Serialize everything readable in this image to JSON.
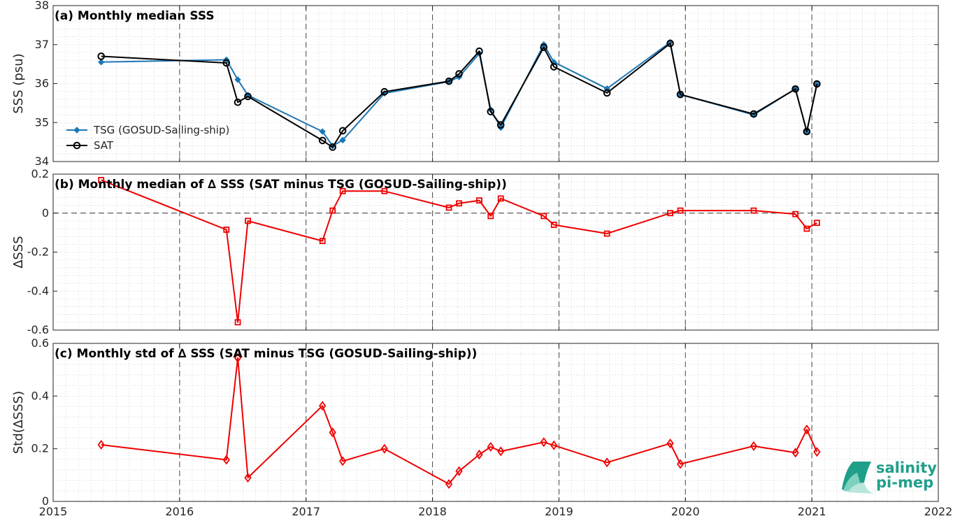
{
  "chart_data": [
    {
      "type": "line",
      "title": "(a) Monthly median SSS",
      "ylabel": "SSS (psu)",
      "ylim": [
        34,
        38
      ],
      "yticks": [
        "34",
        "35",
        "36",
        "37",
        "38"
      ],
      "xlim": [
        2015,
        2022
      ],
      "grid": true,
      "legend_placement": "lower-left",
      "series": [
        {
          "name": "TSG (GOSUD-Sailing-ship)",
          "color": "#1f77b4",
          "marker": "filled-diamond",
          "x": [
            2015.38,
            2016.37,
            2016.46,
            2016.54,
            2017.13,
            2017.21,
            2017.29,
            2017.62,
            2018.13,
            2018.21,
            2018.37,
            2018.46,
            2018.54,
            2018.88,
            2018.96,
            2019.38,
            2019.88,
            2019.96,
            2020.54,
            2020.87,
            2020.96,
            2021.04
          ],
          "values": [
            36.55,
            36.61,
            36.1,
            35.7,
            34.77,
            34.4,
            34.55,
            35.75,
            36.05,
            36.17,
            36.77,
            35.33,
            34.87,
            37.0,
            36.55,
            35.87,
            37.06,
            35.72,
            35.2,
            35.86,
            34.77,
            35.98
          ]
        },
        {
          "name": "SAT",
          "color": "#000000",
          "marker": "open-circle",
          "x": [
            2015.38,
            2016.37,
            2016.46,
            2016.54,
            2017.13,
            2017.21,
            2017.29,
            2017.62,
            2018.13,
            2018.21,
            2018.37,
            2018.46,
            2018.54,
            2018.88,
            2018.96,
            2019.38,
            2019.88,
            2019.96,
            2020.54,
            2020.87,
            2020.96,
            2021.04
          ],
          "values": [
            36.7,
            36.53,
            35.52,
            35.67,
            34.54,
            34.37,
            34.79,
            35.79,
            36.06,
            36.25,
            36.83,
            35.28,
            34.94,
            36.93,
            36.43,
            35.76,
            37.03,
            35.72,
            35.22,
            35.86,
            34.77,
            35.99
          ]
        }
      ]
    },
    {
      "type": "line",
      "title": "(b) Monthly median of ∆ SSS (SAT minus TSG (GOSUD-Sailing-ship))",
      "ylabel": "∆SSS",
      "ylim": [
        -0.6,
        0.2
      ],
      "yticks": [
        "-0.6",
        "-0.4",
        "-0.2",
        "0",
        "0.2"
      ],
      "xlim": [
        2015,
        2022
      ],
      "grid": true,
      "zero_line": true,
      "series": [
        {
          "color": "#ee0000",
          "marker": "open-square",
          "x": [
            2015.38,
            2016.37,
            2016.46,
            2016.54,
            2017.13,
            2017.21,
            2017.29,
            2017.62,
            2018.13,
            2018.21,
            2018.37,
            2018.46,
            2018.54,
            2018.88,
            2018.96,
            2019.38,
            2019.88,
            2019.96,
            2020.54,
            2020.87,
            2020.96,
            2021.04
          ],
          "values": [
            0.17,
            -0.085,
            -0.56,
            -0.04,
            -0.143,
            0.013,
            0.113,
            0.113,
            0.028,
            0.05,
            0.065,
            -0.015,
            0.075,
            -0.015,
            -0.06,
            -0.105,
            0.0,
            0.013,
            0.013,
            -0.005,
            -0.08,
            -0.05
          ]
        }
      ]
    },
    {
      "type": "line",
      "title": "(c) Monthly std of ∆ SSS (SAT minus TSG (GOSUD-Sailing-ship))",
      "ylabel": "Std(∆SSS)",
      "ylim": [
        0,
        0.6
      ],
      "yticks": [
        "0",
        "0.2",
        "0.4",
        "0.6"
      ],
      "xlim": [
        2015,
        2022
      ],
      "xticks": [
        "2015",
        "2016",
        "2017",
        "2018",
        "2019",
        "2020",
        "2021",
        "2022"
      ],
      "grid": true,
      "series": [
        {
          "color": "#ee0000",
          "marker": "open-diamond",
          "x": [
            2015.38,
            2016.37,
            2016.46,
            2016.54,
            2017.13,
            2017.21,
            2017.29,
            2017.62,
            2018.13,
            2018.21,
            2018.37,
            2018.46,
            2018.54,
            2018.88,
            2018.96,
            2019.38,
            2019.88,
            2019.96,
            2020.54,
            2020.87,
            2020.96,
            2021.04
          ],
          "values": [
            0.215,
            0.158,
            0.545,
            0.09,
            0.363,
            0.262,
            0.153,
            0.2,
            0.066,
            0.115,
            0.178,
            0.207,
            0.19,
            0.225,
            0.213,
            0.148,
            0.22,
            0.142,
            0.21,
            0.185,
            0.273,
            0.188
          ]
        }
      ]
    }
  ],
  "logo": {
    "line1": "salinity",
    "line2": "pi-mep"
  },
  "colors": {
    "logo_teal": "#1f9f8a"
  }
}
